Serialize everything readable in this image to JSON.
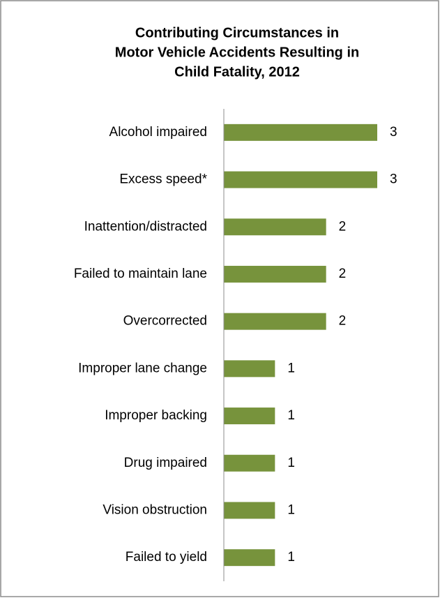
{
  "chart_data": {
    "type": "bar",
    "orientation": "horizontal",
    "title": [
      "Contributing Circumstances in",
      "Motor Vehicle Accidents Resulting in",
      "Child Fatality, 2012"
    ],
    "categories": [
      "Alcohol impaired",
      "Excess speed*",
      "Inattention/distracted",
      "Failed to maintain lane",
      "Overcorrected",
      "Improper lane change",
      "Improper backing",
      "Drug impaired",
      "Vision obstruction",
      "Failed to yield"
    ],
    "values": [
      3,
      3,
      2,
      2,
      2,
      1,
      1,
      1,
      1,
      1
    ],
    "color": "#77933c",
    "grid": false
  }
}
